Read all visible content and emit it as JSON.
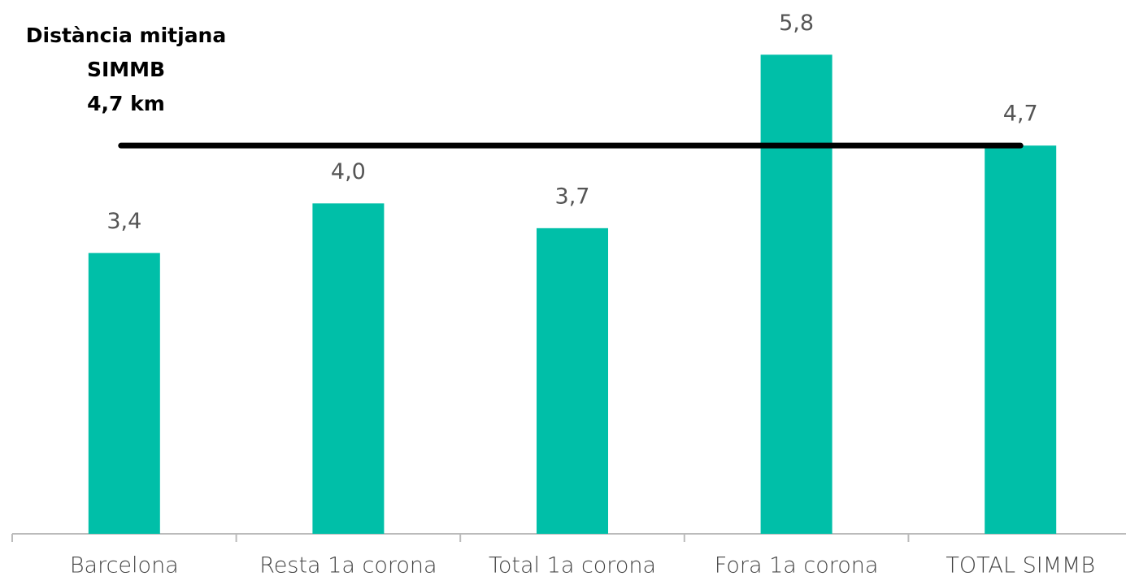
{
  "chart_data": {
    "type": "bar",
    "categories": [
      "Barcelona",
      "Resta 1a corona",
      "Total 1a corona",
      "Fora 1a corona",
      "TOTAL SIMMB"
    ],
    "values": [
      3.4,
      4.0,
      3.7,
      5.8,
      4.7
    ],
    "value_labels": [
      "3,4",
      "4,0",
      "3,7",
      "5,8",
      "4,7"
    ],
    "color": "#00bfa8",
    "ylim": [
      0,
      6
    ],
    "reference_line": {
      "value": 4.7,
      "color": "#000000",
      "label": [
        "Distància mitjana",
        "SIMMB"
      ],
      "value_label": "4,7 km"
    }
  }
}
